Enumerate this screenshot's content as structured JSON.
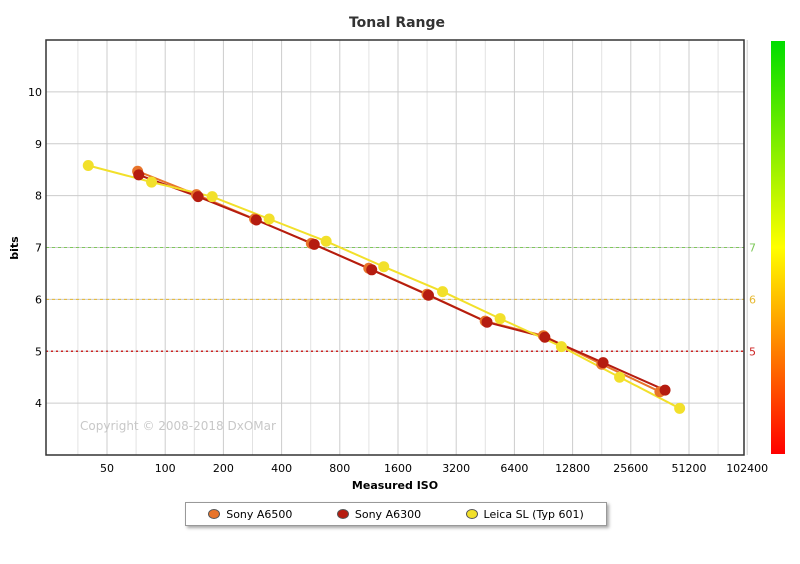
{
  "chart_data": {
    "type": "line",
    "title": "Tonal Range",
    "xlabel": "Measured ISO",
    "ylabel": "bits",
    "x_scale": "log2",
    "x_ticks": [
      "50",
      "100",
      "200",
      "400",
      "800",
      "1600",
      "3200",
      "6400",
      "12800",
      "25600",
      "51200",
      "102400"
    ],
    "y_ticks": [
      "4",
      "5",
      "6",
      "7",
      "8",
      "9",
      "10"
    ],
    "ylim": [
      3,
      11
    ],
    "grid": true,
    "legend_position": "bottom",
    "reference_lines": [
      {
        "label": "7",
        "value": 7,
        "color": "#7ec85a"
      },
      {
        "label": "6",
        "value": 6,
        "color": "#e6b830"
      },
      {
        "label": "5",
        "value": 5,
        "color": "#cc2222"
      }
    ],
    "color_scale": [
      "#00dd00",
      "#ffff00",
      "#ff0000"
    ],
    "copyright": "Copyright © 2008-2018 DxOMar",
    "series": [
      {
        "name": "Sony A6500",
        "color": "#e8742a",
        "x": [
          72,
          145,
          290,
          570,
          1130,
          2260,
          4520,
          9040,
          18100,
          36200
        ],
        "y": [
          8.47,
          8.02,
          7.55,
          7.08,
          6.6,
          6.1,
          5.58,
          5.3,
          4.75,
          4.22
        ]
      },
      {
        "name": "Sony A6300",
        "color": "#b51c10",
        "x": [
          73,
          148,
          296,
          590,
          1170,
          2300,
          4620,
          9200,
          18400,
          38500
        ],
        "y": [
          8.4,
          7.98,
          7.53,
          7.06,
          6.57,
          6.08,
          5.56,
          5.27,
          4.78,
          4.25
        ]
      },
      {
        "name": "Leica SL (Typ 601)",
        "color": "#f2e02a",
        "x": [
          40,
          85,
          175,
          345,
          680,
          1350,
          2720,
          5400,
          11200,
          22400,
          45800
        ],
        "y": [
          8.58,
          8.26,
          7.98,
          7.55,
          7.12,
          6.63,
          6.15,
          5.63,
          5.09,
          4.5,
          3.9
        ]
      }
    ]
  }
}
